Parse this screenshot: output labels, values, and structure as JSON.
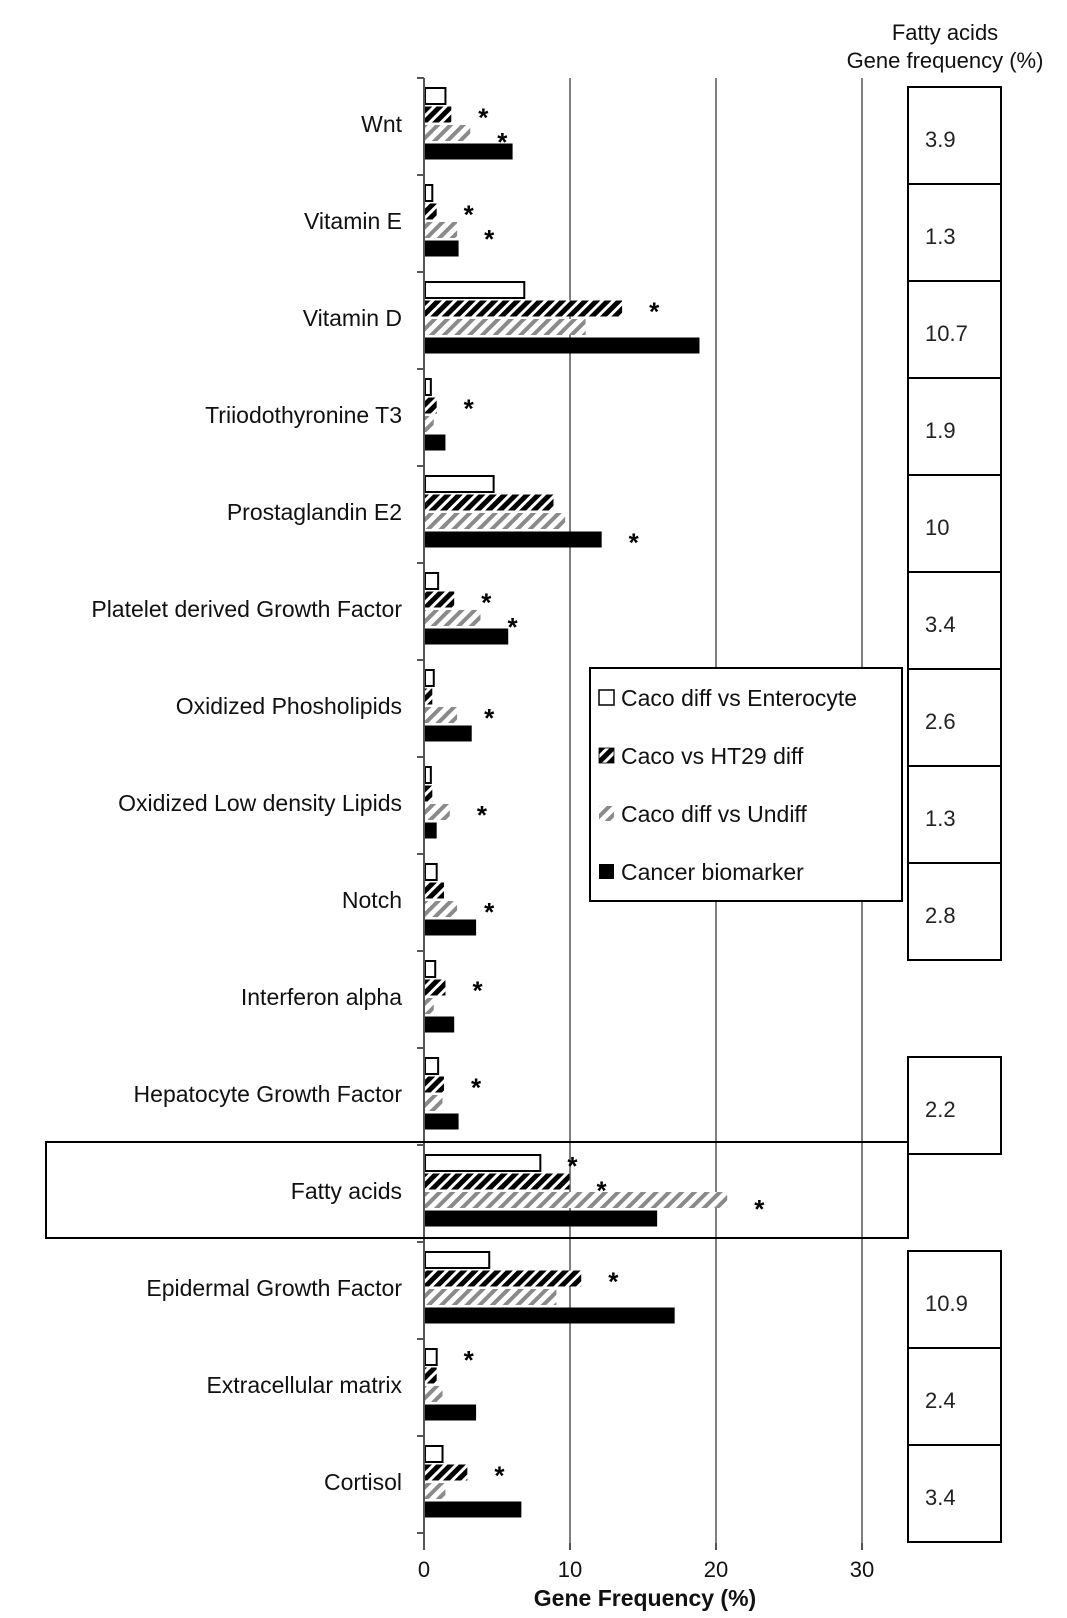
{
  "chart_data": {
    "type": "bar",
    "orientation": "horizontal",
    "xlabel": "Gene Frequency (%)",
    "xlim": [
      0,
      30
    ],
    "xticks": [
      0,
      10,
      20,
      30
    ],
    "grid": true,
    "legend_position": "right-middle",
    "categories": [
      "Wnt",
      "Vitamin E",
      "Vitamin D",
      "Triiodothyronine T3",
      "Prostaglandin E2",
      "Platelet derived Growth Factor",
      "Oxidized Phosholipids",
      "Oxidized Low density Lipids",
      "Notch",
      "Interferon alpha",
      "Hepatocyte Growth Factor",
      "Fatty acids",
      "Epidermal Growth Factor",
      "Extracellular matrix",
      "Cortisol"
    ],
    "series": [
      {
        "name": "Caco diff vs Enterocyte",
        "pattern": "open",
        "values": [
          1.4,
          0.5,
          6.8,
          0.4,
          4.7,
          0.9,
          0.6,
          0.4,
          0.8,
          0.7,
          0.9,
          7.9,
          4.4,
          0.8,
          1.2
        ]
      },
      {
        "name": "Caco vs HT29 diff",
        "pattern": "dark-hatch",
        "values": [
          1.8,
          0.8,
          13.5,
          0.8,
          8.8,
          2.0,
          0.5,
          0.5,
          1.3,
          1.4,
          1.3,
          9.9,
          10.7,
          0.8,
          2.9
        ]
      },
      {
        "name": "Caco diff vs Undiff",
        "pattern": "light-hatch",
        "values": [
          3.1,
          2.2,
          11.0,
          0.6,
          9.6,
          3.8,
          2.2,
          1.7,
          2.2,
          0.6,
          1.2,
          20.7,
          9.0,
          1.2,
          1.4
        ]
      },
      {
        "name": "Cancer biomarker",
        "pattern": "solid",
        "values": [
          6.0,
          2.3,
          18.8,
          1.4,
          12.1,
          5.7,
          3.2,
          0.8,
          3.5,
          2.0,
          2.3,
          15.9,
          17.1,
          3.5,
          6.6
        ]
      }
    ],
    "significance": [
      {
        "category": "Wnt",
        "series": [
          1,
          2
        ],
        "text": "*"
      },
      {
        "category": "Vitamin E",
        "series": [
          1,
          2
        ],
        "text": "*"
      },
      {
        "category": "Vitamin D",
        "series": [
          1
        ],
        "text": "*"
      },
      {
        "category": "Triiodothyronine T3",
        "series": [
          1
        ],
        "text": "*"
      },
      {
        "category": "Prostaglandin E2",
        "series": [
          3
        ],
        "text": "*"
      },
      {
        "category": "Platelet derived Growth Factor",
        "series": [
          1,
          2
        ],
        "text": "*"
      },
      {
        "category": "Oxidized Phosholipids",
        "series": [
          2
        ],
        "text": "*"
      },
      {
        "category": "Oxidized Low density Lipids",
        "series": [
          2
        ],
        "text": "*"
      },
      {
        "category": "Notch",
        "series": [
          2
        ],
        "text": "*"
      },
      {
        "category": "Interferon alpha",
        "series": [
          1
        ],
        "text": "*"
      },
      {
        "category": "Hepatocyte Growth Factor",
        "series": [
          1
        ],
        "text": "*"
      },
      {
        "category": "Fatty acids",
        "series": [
          0,
          1,
          2
        ],
        "text": "*"
      },
      {
        "category": "Epidermal Growth Factor",
        "series": [
          1
        ],
        "text": "*"
      },
      {
        "category": "Extracellular matrix",
        "series": [
          0
        ],
        "text": "*"
      },
      {
        "category": "Cortisol",
        "series": [
          1
        ],
        "text": "*"
      }
    ],
    "highlighted_category": "Fatty acids",
    "side_table": {
      "title_line1": "Fatty acids",
      "title_line2": "Gene frequency (%)",
      "values": [
        "3.9",
        "1.3",
        "10.7",
        "1.9",
        "10",
        "3.4",
        "2.6",
        "1.3",
        "2.8",
        "",
        "2.2",
        "",
        "10.9",
        "2.4",
        "3.4"
      ]
    }
  },
  "colors": {
    "bar_fill": "#000000",
    "light_hatch": "#8a8a8a",
    "grid": "#7f7f7f",
    "axis": "#555555",
    "frame": "#000000"
  }
}
